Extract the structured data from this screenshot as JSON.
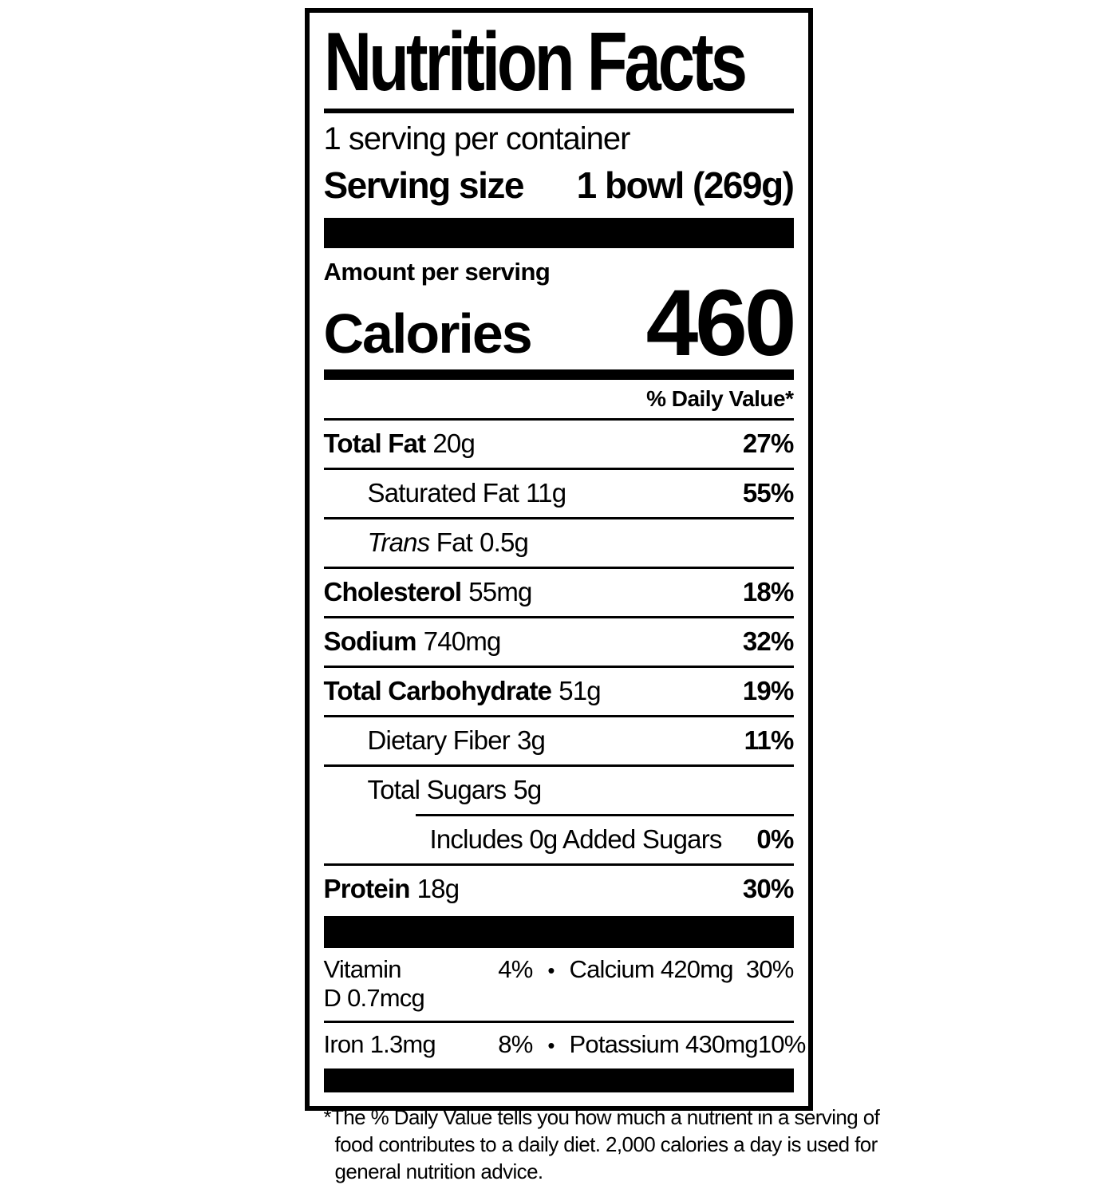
{
  "label": {
    "title": "Nutrition Facts",
    "servings_per_container": "1 serving per container",
    "serving_size_label": "Serving size",
    "serving_size_value": "1 bowl (269g)",
    "amount_per_serving": "Amount per serving",
    "calories_label": "Calories",
    "calories_value": "460",
    "daily_value_header": "% Daily Value*",
    "nutrients": [
      {
        "name": "Total Fat",
        "amount": "20g",
        "dv": "27%"
      },
      {
        "name": "Saturated Fat",
        "amount": "11g",
        "dv": "55%"
      },
      {
        "name_italic": "Trans",
        "name": " Fat",
        "amount": "0.5g",
        "dv": ""
      },
      {
        "name": "Cholesterol",
        "amount": "55mg",
        "dv": "18%"
      },
      {
        "name": "Sodium",
        "amount": "740mg",
        "dv": "32%"
      },
      {
        "name": "Total Carbohydrate",
        "amount": "51g",
        "dv": "19%"
      },
      {
        "name": "Dietary Fiber",
        "amount": "3g",
        "dv": "11%"
      },
      {
        "name": "Total Sugars",
        "amount": "5g",
        "dv": ""
      },
      {
        "name": "Includes 0g Added Sugars",
        "amount": "",
        "dv": "0%"
      },
      {
        "name": "Protein",
        "amount": "18g",
        "dv": "30%"
      }
    ],
    "micronutrients": [
      {
        "name": "Vitamin D",
        "amount": "0.7mcg",
        "dv": "4%"
      },
      {
        "name": "Calcium",
        "amount": "420mg",
        "dv": "30%"
      },
      {
        "name": "Iron",
        "amount": "1.3mg",
        "dv": "8%"
      },
      {
        "name": "Potassium",
        "amount": "430mg",
        "dv": "10%"
      }
    ],
    "bullet": "•",
    "footnote_lines": [
      "*The % Daily Value tells you how much a nutrient in a serving of",
      "food contributes to a daily diet. 2,000 calories a day is used for",
      "general nutrition advice."
    ]
  }
}
